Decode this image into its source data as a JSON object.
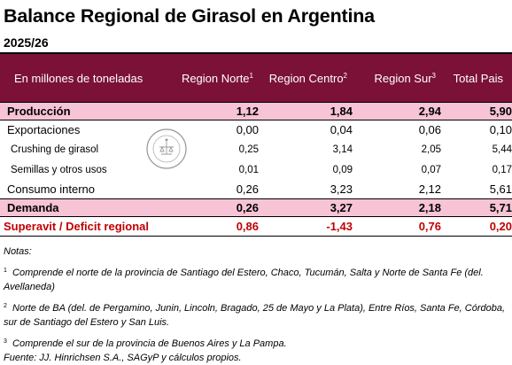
{
  "title": "Balance Regional de Girasol en Argentina",
  "subtitle": "2025/26",
  "header": {
    "label": "En millones de toneladas",
    "cols": [
      {
        "name": "Region Norte",
        "sup": "1"
      },
      {
        "name": "Region Centro",
        "sup": "2"
      },
      {
        "name": "Region Sur",
        "sup": "3"
      },
      {
        "name": "Total Pais",
        "sup": ""
      }
    ]
  },
  "rows": [
    {
      "label": "Producción",
      "values": [
        "1,12",
        "1,84",
        "2,94",
        "5,90"
      ]
    },
    {
      "label": "Exportaciones",
      "values": [
        "0,00",
        "0,04",
        "0,06",
        "0,10"
      ]
    },
    {
      "label": "Crushing de girasol",
      "values": [
        "0,25",
        "3,14",
        "2,05",
        "5,44"
      ]
    },
    {
      "label": "Semillas y otros usos",
      "values": [
        "0,01",
        "0,09",
        "0,07",
        "0,17"
      ]
    },
    {
      "label": "Consumo interno",
      "values": [
        "0,26",
        "3,23",
        "2,12",
        "5,61"
      ]
    },
    {
      "label": "Demanda",
      "values": [
        "0,26",
        "3,27",
        "2,18",
        "5,71"
      ]
    },
    {
      "label": "Superavit / Deficit regional",
      "values": [
        "0,86",
        "-1,43",
        "0,76",
        "0,20"
      ]
    }
  ],
  "notes": {
    "heading": "Notas:",
    "n1_sup": "1",
    "n1": "Comprende el norte de la provincia de Santiago del Estero, Chaco, Tucumán, Salta y Norte de Santa Fe (del. Avellaneda)",
    "n2_sup": "2",
    "n2": "Norte de BA (del. de Pergamino, Junin, Lincoln, Bragado, 25 de Mayo y La Plata), Entre Ríos, Santa Fe, Córdoba, sur de Santiago del Estero y San Luis.",
    "n3_sup": "3",
    "n3": "Comprende el sur de la provincia de Buenos Aires y La Pampa.",
    "source": "Fuente: JJ. Hinrichsen S.A., SAGyP y cálculos propios."
  },
  "colors": {
    "header_bg": "#7b1137",
    "highlight_bg": "#f6c4d5",
    "deficit_text": "#c00000"
  },
  "seal_icon": "bolsa-de-comercio-seal-watermark"
}
